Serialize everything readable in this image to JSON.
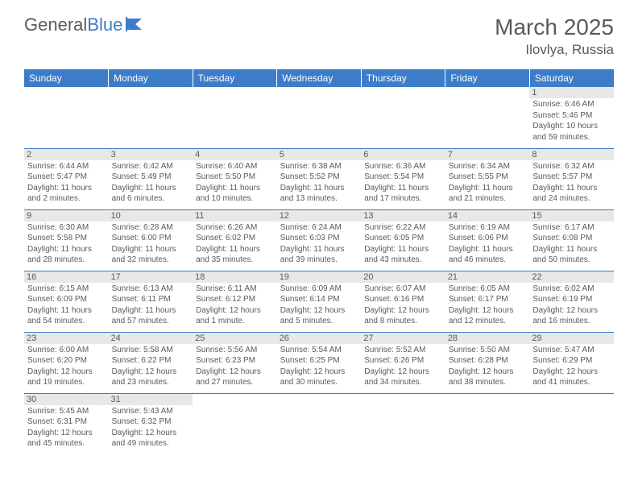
{
  "logo": {
    "word1": "General",
    "word2": "Blue"
  },
  "title": "March 2025",
  "location": "Ilovlya, Russia",
  "header_bg": "#3d7cc9",
  "header_text": "#ffffff",
  "cell_border": "#3d7cc9",
  "daynum_bg": "#e8e8e8",
  "text_color": "#5a5a5a",
  "days": [
    "Sunday",
    "Monday",
    "Tuesday",
    "Wednesday",
    "Thursday",
    "Friday",
    "Saturday"
  ],
  "weeks": [
    [
      null,
      null,
      null,
      null,
      null,
      null,
      {
        "n": "1",
        "sr": "6:46 AM",
        "ss": "5:46 PM",
        "dl": "10 hours and 59 minutes."
      }
    ],
    [
      {
        "n": "2",
        "sr": "6:44 AM",
        "ss": "5:47 PM",
        "dl": "11 hours and 2 minutes."
      },
      {
        "n": "3",
        "sr": "6:42 AM",
        "ss": "5:49 PM",
        "dl": "11 hours and 6 minutes."
      },
      {
        "n": "4",
        "sr": "6:40 AM",
        "ss": "5:50 PM",
        "dl": "11 hours and 10 minutes."
      },
      {
        "n": "5",
        "sr": "6:38 AM",
        "ss": "5:52 PM",
        "dl": "11 hours and 13 minutes."
      },
      {
        "n": "6",
        "sr": "6:36 AM",
        "ss": "5:54 PM",
        "dl": "11 hours and 17 minutes."
      },
      {
        "n": "7",
        "sr": "6:34 AM",
        "ss": "5:55 PM",
        "dl": "11 hours and 21 minutes."
      },
      {
        "n": "8",
        "sr": "6:32 AM",
        "ss": "5:57 PM",
        "dl": "11 hours and 24 minutes."
      }
    ],
    [
      {
        "n": "9",
        "sr": "6:30 AM",
        "ss": "5:58 PM",
        "dl": "11 hours and 28 minutes."
      },
      {
        "n": "10",
        "sr": "6:28 AM",
        "ss": "6:00 PM",
        "dl": "11 hours and 32 minutes."
      },
      {
        "n": "11",
        "sr": "6:26 AM",
        "ss": "6:02 PM",
        "dl": "11 hours and 35 minutes."
      },
      {
        "n": "12",
        "sr": "6:24 AM",
        "ss": "6:03 PM",
        "dl": "11 hours and 39 minutes."
      },
      {
        "n": "13",
        "sr": "6:22 AM",
        "ss": "6:05 PM",
        "dl": "11 hours and 43 minutes."
      },
      {
        "n": "14",
        "sr": "6:19 AM",
        "ss": "6:06 PM",
        "dl": "11 hours and 46 minutes."
      },
      {
        "n": "15",
        "sr": "6:17 AM",
        "ss": "6:08 PM",
        "dl": "11 hours and 50 minutes."
      }
    ],
    [
      {
        "n": "16",
        "sr": "6:15 AM",
        "ss": "6:09 PM",
        "dl": "11 hours and 54 minutes."
      },
      {
        "n": "17",
        "sr": "6:13 AM",
        "ss": "6:11 PM",
        "dl": "11 hours and 57 minutes."
      },
      {
        "n": "18",
        "sr": "6:11 AM",
        "ss": "6:12 PM",
        "dl": "12 hours and 1 minute."
      },
      {
        "n": "19",
        "sr": "6:09 AM",
        "ss": "6:14 PM",
        "dl": "12 hours and 5 minutes."
      },
      {
        "n": "20",
        "sr": "6:07 AM",
        "ss": "6:16 PM",
        "dl": "12 hours and 8 minutes."
      },
      {
        "n": "21",
        "sr": "6:05 AM",
        "ss": "6:17 PM",
        "dl": "12 hours and 12 minutes."
      },
      {
        "n": "22",
        "sr": "6:02 AM",
        "ss": "6:19 PM",
        "dl": "12 hours and 16 minutes."
      }
    ],
    [
      {
        "n": "23",
        "sr": "6:00 AM",
        "ss": "6:20 PM",
        "dl": "12 hours and 19 minutes."
      },
      {
        "n": "24",
        "sr": "5:58 AM",
        "ss": "6:22 PM",
        "dl": "12 hours and 23 minutes."
      },
      {
        "n": "25",
        "sr": "5:56 AM",
        "ss": "6:23 PM",
        "dl": "12 hours and 27 minutes."
      },
      {
        "n": "26",
        "sr": "5:54 AM",
        "ss": "6:25 PM",
        "dl": "12 hours and 30 minutes."
      },
      {
        "n": "27",
        "sr": "5:52 AM",
        "ss": "6:26 PM",
        "dl": "12 hours and 34 minutes."
      },
      {
        "n": "28",
        "sr": "5:50 AM",
        "ss": "6:28 PM",
        "dl": "12 hours and 38 minutes."
      },
      {
        "n": "29",
        "sr": "5:47 AM",
        "ss": "6:29 PM",
        "dl": "12 hours and 41 minutes."
      }
    ],
    [
      {
        "n": "30",
        "sr": "5:45 AM",
        "ss": "6:31 PM",
        "dl": "12 hours and 45 minutes."
      },
      {
        "n": "31",
        "sr": "5:43 AM",
        "ss": "6:32 PM",
        "dl": "12 hours and 49 minutes."
      },
      null,
      null,
      null,
      null,
      null
    ]
  ],
  "labels": {
    "sunrise": "Sunrise:",
    "sunset": "Sunset:",
    "daylight": "Daylight:"
  }
}
